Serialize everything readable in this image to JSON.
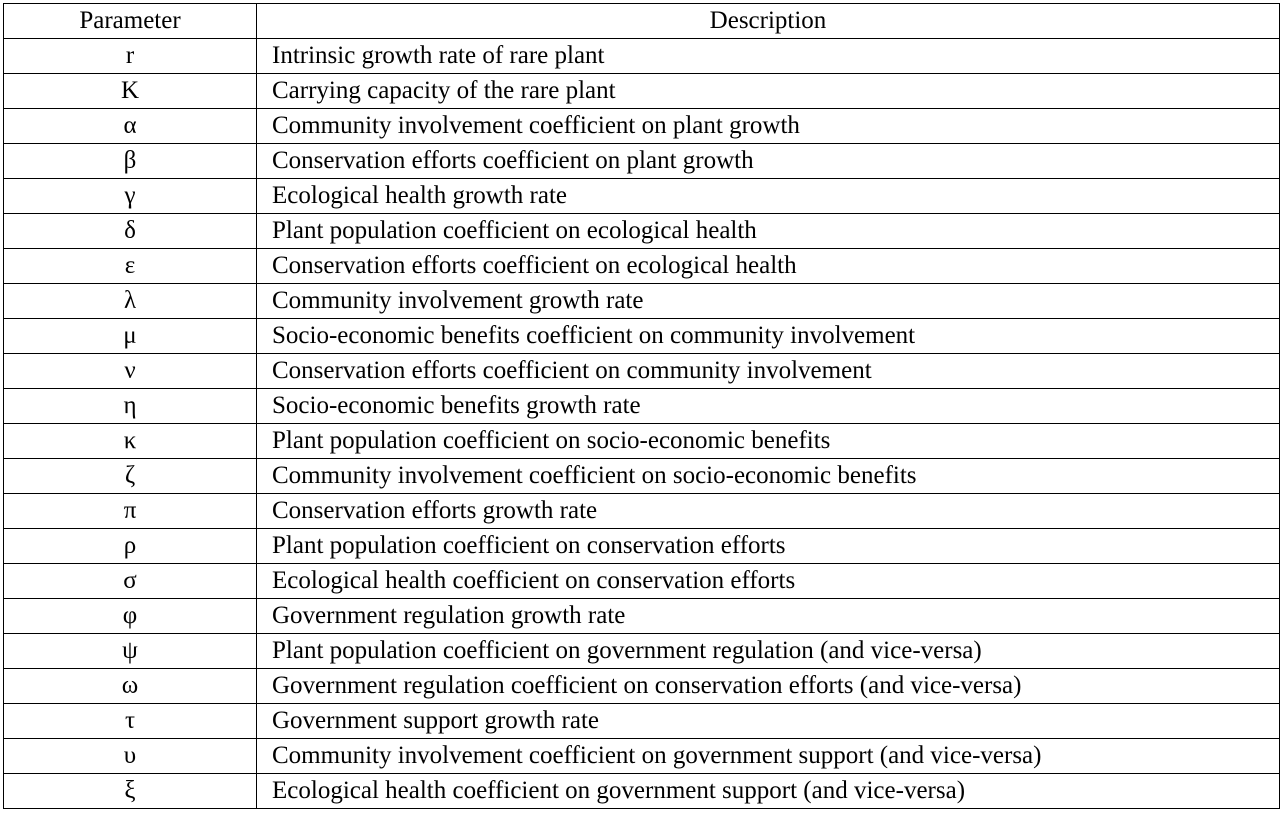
{
  "table": {
    "headers": {
      "parameter": "Parameter",
      "description": "Description"
    },
    "rows": [
      {
        "symbol": "r",
        "description": "Intrinsic growth rate of rare plant"
      },
      {
        "symbol": "K",
        "description": "Carrying capacity of the rare plant"
      },
      {
        "symbol": "α",
        "description": "Community involvement coefficient on plant growth"
      },
      {
        "symbol": "β",
        "description": "Conservation efforts coefficient on plant growth"
      },
      {
        "symbol": "γ",
        "description": "Ecological health growth rate"
      },
      {
        "symbol": "δ",
        "description": "Plant population coefficient on ecological health"
      },
      {
        "symbol": "ε",
        "description": "Conservation efforts coefficient on ecological health"
      },
      {
        "symbol": "λ",
        "description": "Community involvement growth rate"
      },
      {
        "symbol": "μ",
        "description": "Socio-economic benefits coefficient on community involvement"
      },
      {
        "symbol": "ν",
        "description": "Conservation efforts coefficient on community involvement"
      },
      {
        "symbol": "η",
        "description": "Socio-economic benefits growth rate"
      },
      {
        "symbol": "κ",
        "description": "Plant population coefficient on socio-economic benefits"
      },
      {
        "symbol": "ζ",
        "description": "Community involvement coefficient on socio-economic benefits"
      },
      {
        "symbol": "π",
        "description": "Conservation efforts growth rate"
      },
      {
        "symbol": "ρ",
        "description": "Plant population coefficient on conservation efforts"
      },
      {
        "symbol": "σ",
        "description": "Ecological health coefficient on conservation efforts"
      },
      {
        "symbol": "φ",
        "description": "Government regulation growth rate"
      },
      {
        "symbol": "ψ",
        "description": "Plant population coefficient on government regulation (and vice-versa)"
      },
      {
        "symbol": "ω",
        "description": "Government regulation coefficient on conservation efforts (and vice-versa)"
      },
      {
        "symbol": "τ",
        "description": "Government support growth rate"
      },
      {
        "symbol": "υ",
        "description": "Community involvement coefficient on government support (and vice-versa)"
      },
      {
        "symbol": "ξ",
        "description": "Ecological health coefficient on government support (and vice-versa)"
      }
    ]
  }
}
